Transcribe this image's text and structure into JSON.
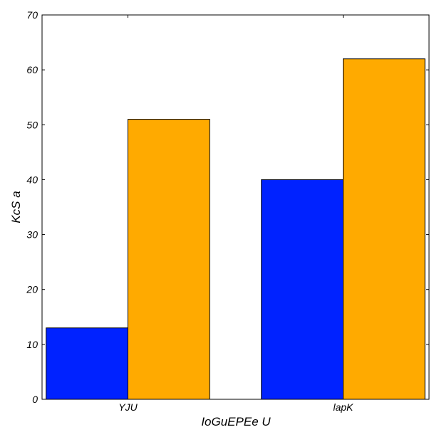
{
  "chart_data": {
    "type": "bar",
    "title": "",
    "xlabel": "IoGuEPEe U",
    "ylabel": "KcS a",
    "categories": [
      "YJU",
      "lapK"
    ],
    "series": [
      {
        "values": [
          13,
          40
        ],
        "color": "#0022ff"
      },
      {
        "values": [
          51,
          62
        ],
        "color": "#ffaa00"
      }
    ],
    "ylim": [
      0,
      70
    ],
    "yticks": [
      0,
      10,
      20,
      30,
      40,
      50,
      60,
      70
    ],
    "grid": false,
    "legend": "none"
  }
}
